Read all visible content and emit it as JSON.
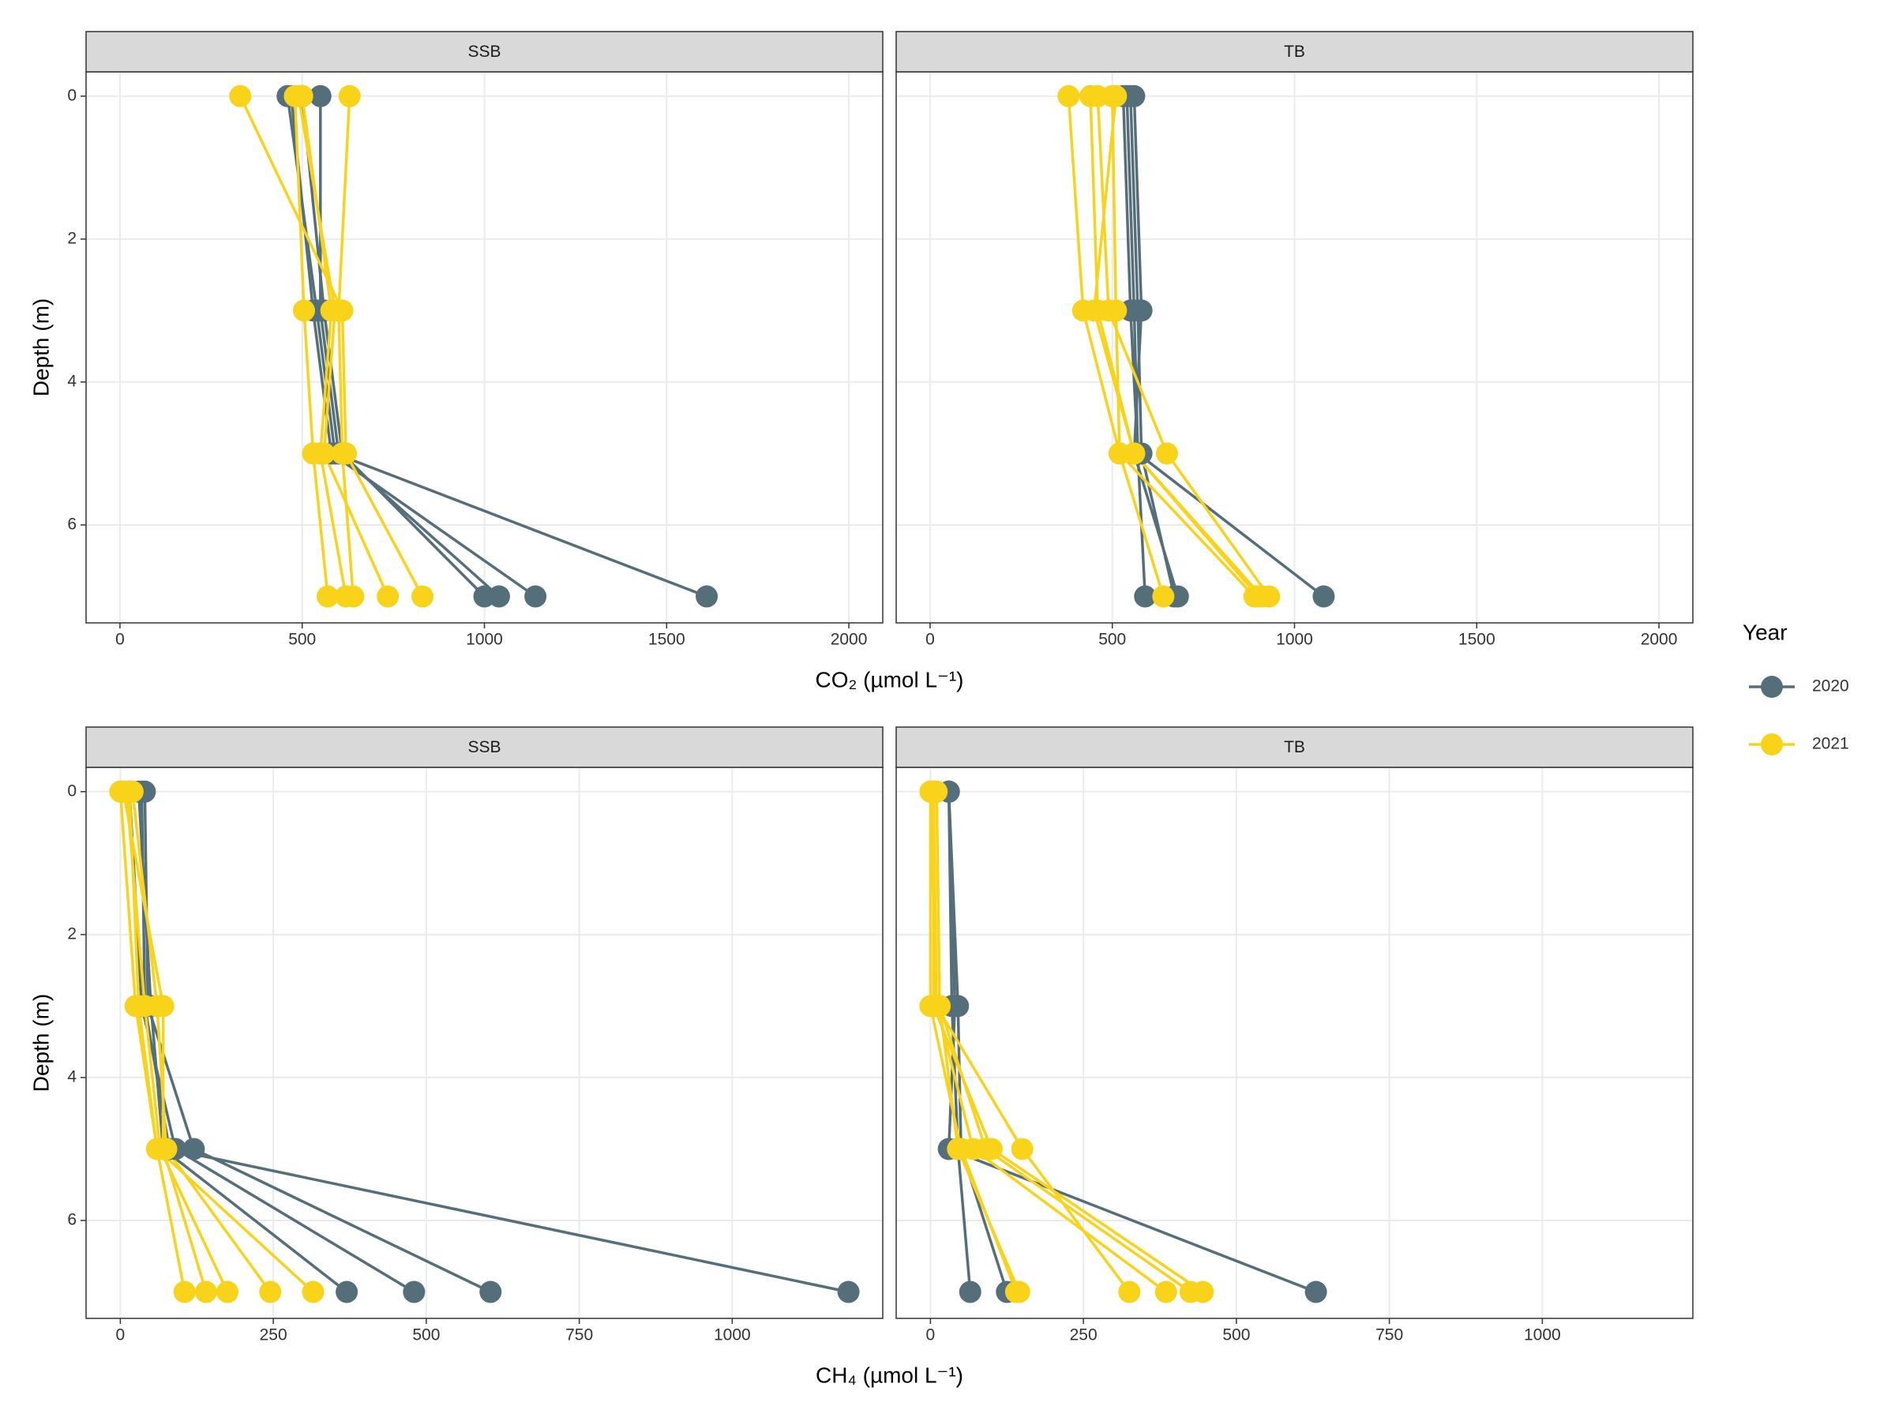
{
  "chart_data": [
    {
      "type": "line",
      "xlabel": "CO₂ (µmol L⁻¹)",
      "ylabel": "Depth (m)",
      "xlim": [
        -93,
        2093
      ],
      "xticks": [
        0,
        500,
        1000,
        1500,
        2000
      ],
      "ylim": [
        -0.34,
        7.37
      ],
      "yticks": [
        0,
        2,
        4,
        6
      ],
      "y_reversed": true,
      "grid": true,
      "depths": [
        0,
        3,
        5,
        7
      ],
      "panels": [
        {
          "facet": "SSB",
          "series": [
            {
              "name": "2020",
              "color": "#546e7a",
              "profiles": [
                [
                  460,
                  540,
                  590,
                  1610
                ],
                [
                  470,
                  530,
                  580,
                  1140
                ],
                [
                  550,
                  550,
                  600,
                  1040
                ],
                [
                  500,
                  560,
                  610,
                  1000
                ]
              ]
            },
            {
              "name": "2021",
              "color": "#f8d31a",
              "profiles": [
                [
                  330,
                  610,
                  620,
                  830
                ],
                [
                  480,
                  505,
                  530,
                  570
                ],
                [
                  500,
                  580,
                  550,
                  620
                ],
                [
                  630,
                  600,
                  610,
                  640
                ],
                [
                  490,
                  590,
                  560,
                  735
                ]
              ]
            }
          ]
        },
        {
          "facet": "TB",
          "series": [
            {
              "name": "2020",
              "color": "#546e7a",
              "profiles": [
                [
                  540,
                  560,
                  570,
                  1080
                ],
                [
                  560,
                  580,
                  560,
                  680
                ],
                [
                  530,
                  550,
                  570,
                  590
                ],
                [
                  550,
                  570,
                  580,
                  670
                ]
              ]
            },
            {
              "name": "2021",
              "color": "#f8d31a",
              "profiles": [
                [
                  380,
                  420,
                  520,
                  890
                ],
                [
                  440,
                  460,
                  560,
                  910
                ],
                [
                  460,
                  490,
                  650,
                  930
                ],
                [
                  500,
                  510,
                  520,
                  640
                ],
                [
                  510,
                  450,
                  560,
                  900
                ]
              ]
            }
          ]
        }
      ]
    },
    {
      "type": "line",
      "xlabel": "CH₄ (µmol L⁻¹)",
      "ylabel": "Depth (m)",
      "xlim": [
        -56,
        1246
      ],
      "xticks": [
        0,
        250,
        500,
        750,
        1000
      ],
      "ylim": [
        -0.34,
        7.37
      ],
      "yticks": [
        0,
        2,
        4,
        6
      ],
      "y_reversed": true,
      "grid": true,
      "depths": [
        0,
        3,
        5,
        7
      ],
      "panels": [
        {
          "facet": "SSB",
          "series": [
            {
              "name": "2020",
              "color": "#546e7a",
              "profiles": [
                [
                  35,
                  40,
                  80,
                  1190
                ],
                [
                  40,
                  45,
                  120,
                  605
                ],
                [
                  15,
                  35,
                  90,
                  480
                ],
                [
                  30,
                  50,
                  70,
                  370
                ]
              ]
            },
            {
              "name": "2021",
              "color": "#f8d31a",
              "profiles": [
                [
                  0,
                  25,
                  60,
                  105
                ],
                [
                  5,
                  70,
                  70,
                  140
                ],
                [
                  10,
                  40,
                  65,
                  175
                ],
                [
                  20,
                  60,
                  75,
                  245
                ],
                [
                  15,
                  30,
                  60,
                  315
                ]
              ]
            }
          ]
        },
        {
          "facet": "TB",
          "series": [
            {
              "name": "2020",
              "color": "#546e7a",
              "profiles": [
                [
                  30,
                  40,
                  30,
                  630
                ],
                [
                  30,
                  45,
                  50,
                  125
                ],
                [
                  30,
                  35,
                  45,
                  65
                ]
              ]
            },
            {
              "name": "2021",
              "color": "#f8d31a",
              "profiles": [
                [
                  0,
                  0,
                  50,
                  140
                ],
                [
                  5,
                  10,
                  70,
                  385
                ],
                [
                  10,
                  15,
                  90,
                  425
                ],
                [
                  5,
                  5,
                  100,
                  445
                ],
                [
                  0,
                  10,
                  150,
                  325
                ],
                [
                  10,
                  15,
                  45,
                  145
                ]
              ]
            }
          ]
        }
      ]
    }
  ],
  "legend": {
    "title": "Year",
    "position": "right"
  }
}
